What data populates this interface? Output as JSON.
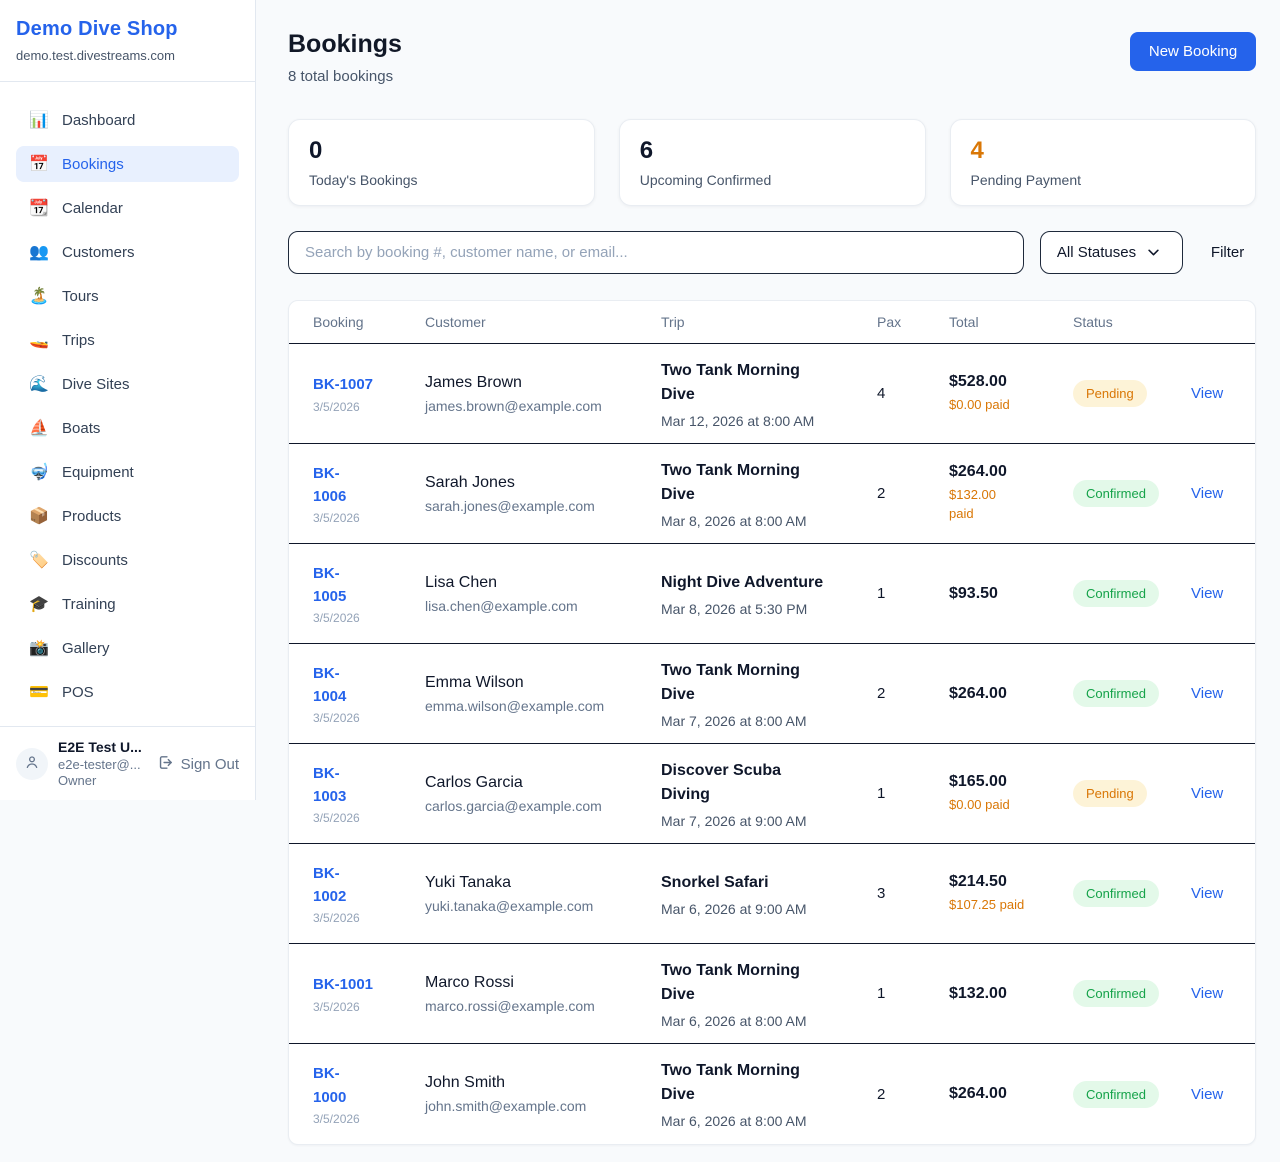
{
  "brand": {
    "name": "Demo Dive Shop",
    "domain": "demo.test.divestreams.com"
  },
  "sidebar": {
    "items": [
      {
        "icon": "📊",
        "icon_name": "bar-chart-icon",
        "label": "Dashboard",
        "active": false
      },
      {
        "icon": "📅",
        "icon_name": "calendar-17-icon",
        "label": "Bookings",
        "active": true
      },
      {
        "icon": "📆",
        "icon_name": "tear-off-calendar-icon",
        "label": "Calendar",
        "active": false
      },
      {
        "icon": "👥",
        "icon_name": "people-icon",
        "label": "Customers",
        "active": false
      },
      {
        "icon": "🏝️",
        "icon_name": "island-icon",
        "label": "Tours",
        "active": false
      },
      {
        "icon": "🚤",
        "icon_name": "speedboat-icon",
        "label": "Trips",
        "active": false
      },
      {
        "icon": "🌊",
        "icon_name": "wave-icon",
        "label": "Dive Sites",
        "active": false
      },
      {
        "icon": "⛵",
        "icon_name": "sailboat-icon",
        "label": "Boats",
        "active": false
      },
      {
        "icon": "🤿",
        "icon_name": "diving-mask-icon",
        "label": "Equipment",
        "active": false
      },
      {
        "icon": "📦",
        "icon_name": "package-icon",
        "label": "Products",
        "active": false
      },
      {
        "icon": "🏷️",
        "icon_name": "tag-icon",
        "label": "Discounts",
        "active": false
      },
      {
        "icon": "🎓",
        "icon_name": "graduation-cap-icon",
        "label": "Training",
        "active": false
      },
      {
        "icon": "📸",
        "icon_name": "camera-icon",
        "label": "Gallery",
        "active": false
      },
      {
        "icon": "💳",
        "icon_name": "credit-card-icon",
        "label": "POS",
        "active": false
      }
    ]
  },
  "user": {
    "name": "E2E Test U...",
    "email": "e2e-tester@...",
    "role": "Owner",
    "signout_label": "Sign Out"
  },
  "header": {
    "title": "Bookings",
    "subtitle": "8 total bookings",
    "new_booking_label": "New Booking"
  },
  "stats": [
    {
      "value": "0",
      "label": "Today's Bookings"
    },
    {
      "value": "6",
      "label": "Upcoming Confirmed"
    },
    {
      "value": "4",
      "label": "Pending Payment"
    }
  ],
  "filters": {
    "search_placeholder": "Search by booking #, customer name, or email...",
    "status_selected": "All Statuses",
    "filter_label": "Filter"
  },
  "table": {
    "columns": [
      "Booking",
      "Customer",
      "Trip",
      "Pax",
      "Total",
      "Status"
    ],
    "view_label": "View",
    "rows": [
      {
        "id": "BK-1007",
        "date": "3/5/2026",
        "customer": "James Brown",
        "email": "james.brown@example.com",
        "trip": "Two Tank Morning\nDive",
        "trip_date": "Mar 12, 2026 at 8:00 AM",
        "pax": "4",
        "total": "$528.00",
        "paid": "$0.00 paid",
        "status": "Pending"
      },
      {
        "id": "BK-\n1006",
        "date": "3/5/2026",
        "customer": "Sarah Jones",
        "email": "sarah.jones@example.com",
        "trip": "Two Tank Morning\nDive",
        "trip_date": "Mar 8, 2026 at 8:00 AM",
        "pax": "2",
        "total": "$264.00",
        "paid": "$132.00\npaid",
        "status": "Confirmed"
      },
      {
        "id": "BK-\n1005",
        "date": "3/5/2026",
        "customer": "Lisa Chen",
        "email": "lisa.chen@example.com",
        "trip": "Night Dive Adventure",
        "trip_date": "Mar 8, 2026 at 5:30 PM",
        "pax": "1",
        "total": "$93.50",
        "paid": "",
        "status": "Confirmed"
      },
      {
        "id": "BK-\n1004",
        "date": "3/5/2026",
        "customer": "Emma Wilson",
        "email": "emma.wilson@example.com",
        "trip": "Two Tank Morning\nDive",
        "trip_date": "Mar 7, 2026 at 8:00 AM",
        "pax": "2",
        "total": "$264.00",
        "paid": "",
        "status": "Confirmed"
      },
      {
        "id": "BK-\n1003",
        "date": "3/5/2026",
        "customer": "Carlos Garcia",
        "email": "carlos.garcia@example.com",
        "trip": "Discover Scuba\nDiving",
        "trip_date": "Mar 7, 2026 at 9:00 AM",
        "pax": "1",
        "total": "$165.00",
        "paid": "$0.00 paid",
        "status": "Pending"
      },
      {
        "id": "BK-\n1002",
        "date": "3/5/2026",
        "customer": "Yuki Tanaka",
        "email": "yuki.tanaka@example.com",
        "trip": "Snorkel Safari",
        "trip_date": "Mar 6, 2026 at 9:00 AM",
        "pax": "3",
        "total": "$214.50",
        "paid": "$107.25 paid",
        "status": "Confirmed"
      },
      {
        "id": "BK-1001",
        "date": "3/5/2026",
        "customer": "Marco Rossi",
        "email": "marco.rossi@example.com",
        "trip": "Two Tank Morning\nDive",
        "trip_date": "Mar 6, 2026 at 8:00 AM",
        "pax": "1",
        "total": "$132.00",
        "paid": "",
        "status": "Confirmed"
      },
      {
        "id": "BK-\n1000",
        "date": "3/5/2026",
        "customer": "John Smith",
        "email": "john.smith@example.com",
        "trip": "Two Tank Morning\nDive",
        "trip_date": "Mar 6, 2026 at 8:00 AM",
        "pax": "2",
        "total": "$264.00",
        "paid": "",
        "status": "Confirmed"
      }
    ]
  },
  "colors": {
    "accent_blue": "#2563eb",
    "pending_orange": "#d97706",
    "confirmed_green": "#16a34a",
    "page_background": "#f8fafc"
  }
}
